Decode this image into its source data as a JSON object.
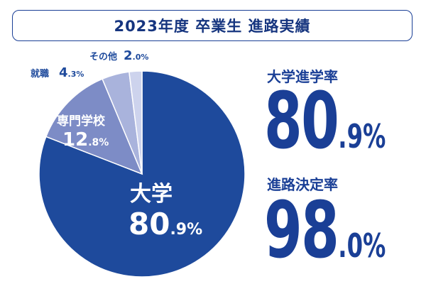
{
  "title": "2023年度 卒業生 進路実績",
  "chart_data": {
    "type": "pie",
    "slices": [
      {
        "name": "大学",
        "value": 80.9,
        "color": "#1e4a9c"
      },
      {
        "name": "専門学校",
        "value": 12.8,
        "color": "#7d8cc6"
      },
      {
        "name": "就職",
        "value": 4.3,
        "color": "#a9b3dc"
      },
      {
        "name": "その他",
        "value": 2.0,
        "color": "#cdd3ed"
      }
    ]
  },
  "labels": {
    "univ": {
      "name": "大学",
      "int": "80",
      "dec": ".9%"
    },
    "vocational": {
      "name": "専門学校",
      "int": "12",
      "dec": ".8%"
    },
    "employment": {
      "name": "就職",
      "int": "4",
      "dec": ".3%"
    },
    "other": {
      "name": "その他",
      "int": "2",
      "dec": ".0%"
    }
  },
  "kpis": {
    "univ_rate": {
      "label": "大学進学率",
      "int": "80",
      "dec": ".9%"
    },
    "decided_rate": {
      "label": "進路決定率",
      "int": "98",
      "dec": ".0%"
    }
  }
}
